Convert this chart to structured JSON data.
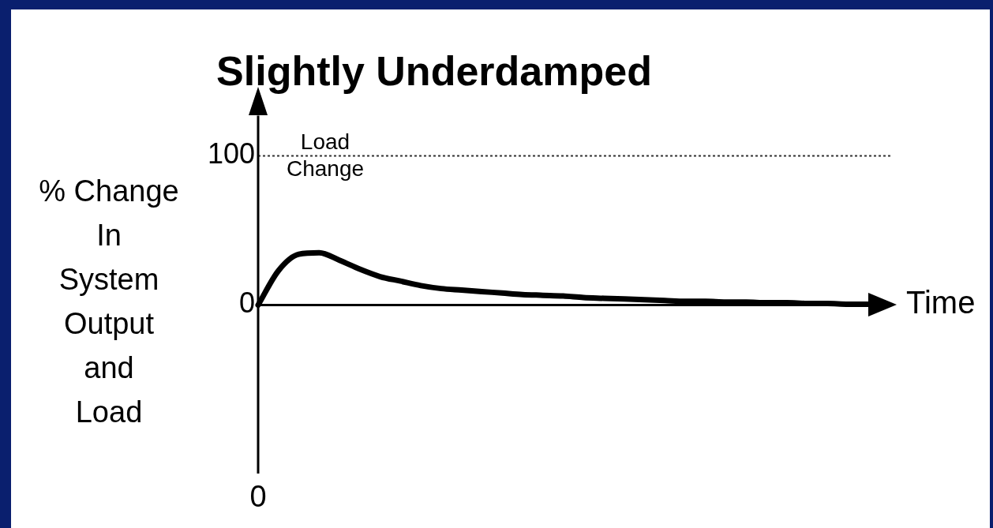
{
  "chart_data": {
    "type": "line",
    "title": "Slightly Underdamped",
    "xlabel": "Time",
    "ylabel": "% Change\nIn\nSystem\nOutput\nand\nLoad",
    "categories": [
      null,
      null,
      null,
      null,
      null,
      null,
      null,
      null,
      null,
      null,
      null,
      null,
      null,
      null,
      null,
      null,
      null,
      null,
      null,
      null,
      null,
      null,
      null,
      null,
      null,
      null,
      null,
      null,
      null,
      null,
      null
    ],
    "series": [
      {
        "color": "#000000",
        "values": [
          0,
          23,
          34,
          35,
          30,
          24,
          19,
          16,
          13,
          11,
          10,
          9,
          8,
          7,
          6.5,
          6,
          5,
          4.5,
          4,
          3.5,
          3,
          2.5,
          2.5,
          2,
          2,
          1.5,
          1.5,
          1,
          1,
          0.5,
          0.5
        ]
      }
    ],
    "ylim": [
      -113,
      127
    ],
    "yticks": [
      0,
      100
    ],
    "ref_lines": [
      {
        "axis": "y",
        "value": 100,
        "label": "Load Change",
        "line_style": "dotted",
        "color": "#333333"
      }
    ],
    "annotations": [
      "0"
    ],
    "grid": false,
    "legend": false,
    "marker": "none",
    "line_style": "solid"
  }
}
